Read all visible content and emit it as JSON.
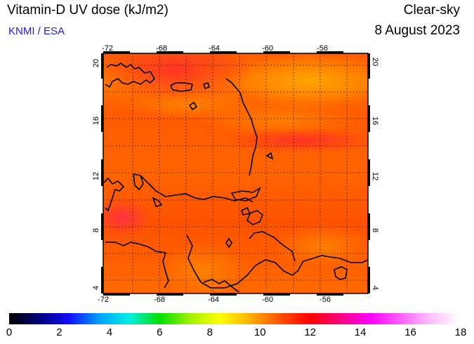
{
  "header": {
    "title": "Vitamin-D UV dose (kJ/m2)",
    "credit": "KNMI / ESA",
    "sky_condition": "Clear-sky",
    "date": "8 August 2023"
  },
  "map": {
    "lon_ticks": [
      "-72",
      "-68",
      "-64",
      "-60",
      "-56"
    ],
    "lat_ticks": [
      "4",
      "8",
      "12",
      "16",
      "20"
    ],
    "lon_range": [
      -72,
      -52
    ],
    "lat_range": [
      3,
      21
    ],
    "field_colors": {
      "base": "#ff5a00",
      "warm": "#ff7a00",
      "hot": "#ff3a1c",
      "peak": "#ff9a00"
    }
  },
  "colorbar": {
    "labels": [
      "0",
      "2",
      "4",
      "6",
      "8",
      "10",
      "12",
      "14",
      "16",
      "18"
    ],
    "stops": [
      "#000000",
      "#00007a",
      "#1010ff",
      "#00a0ff",
      "#00f0e0",
      "#00e000",
      "#a0f000",
      "#ffff00",
      "#ffb000",
      "#ff5000",
      "#ff0000",
      "#ff0080",
      "#ff00ff",
      "#ff60ff",
      "#ffc0ff",
      "#ffffff"
    ]
  }
}
